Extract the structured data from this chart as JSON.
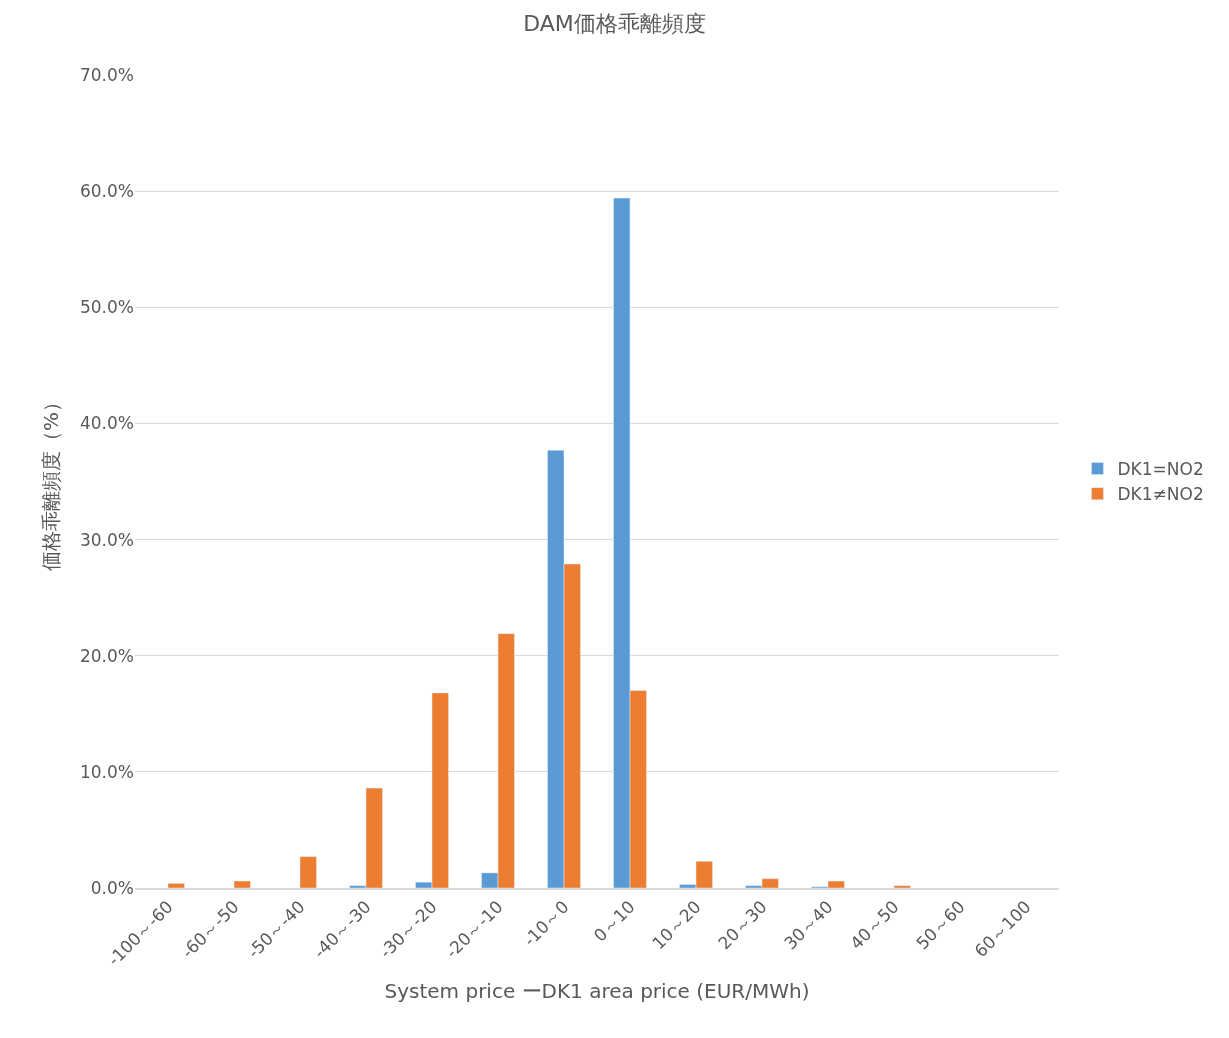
{
  "chart_data": {
    "type": "bar",
    "title": "DAM価格乖離頻度",
    "xlabel": "System price ーDK1 area price (EUR/MWh)",
    "ylabel": "価格乖離頻度（%）",
    "categories": [
      "-100～-60",
      "-60～-50",
      "-50～-40",
      "-40～-30",
      "-30～-20",
      "-20～-10",
      "-10～0",
      "0～10",
      "10～20",
      "20～30",
      "30～40",
      "40～50",
      "50～60",
      "60～100"
    ],
    "series": [
      {
        "name": "DK1=NO2",
        "color": "#5b9bd5",
        "values": [
          null,
          null,
          null,
          0.2,
          0.5,
          1.3,
          37.7,
          59.4,
          0.3,
          0.2,
          0.1,
          null,
          null,
          null
        ]
      },
      {
        "name": "DK1≠NO2",
        "color": "#ed7d31",
        "values": [
          0.4,
          0.6,
          2.7,
          8.6,
          16.8,
          21.9,
          27.9,
          17.0,
          2.3,
          0.8,
          0.6,
          0.2,
          null,
          null
        ]
      }
    ],
    "ylim": [
      0,
      70
    ],
    "yticks": [
      {
        "value": 0,
        "label": "0.0%"
      },
      {
        "value": 10,
        "label": "10.0%"
      },
      {
        "value": 20,
        "label": "20.0%"
      },
      {
        "value": 30,
        "label": "30.0%"
      },
      {
        "value": 40,
        "label": "40.0%"
      },
      {
        "value": 50,
        "label": "50.0%"
      },
      {
        "value": 60,
        "label": "60.0%"
      },
      {
        "value": 70,
        "label": "70.0%"
      }
    ],
    "grid": "y",
    "legend": "right"
  }
}
